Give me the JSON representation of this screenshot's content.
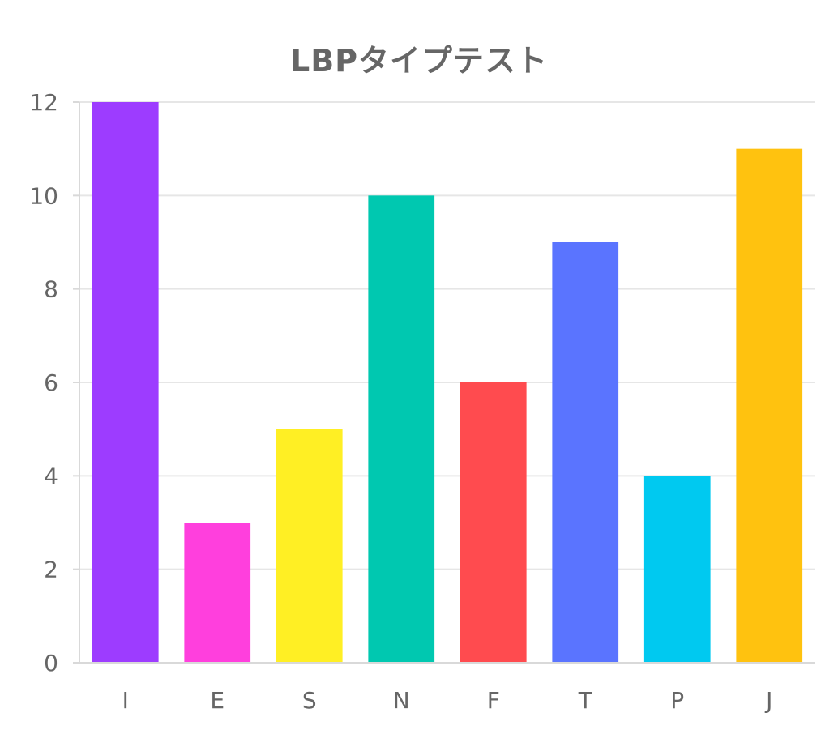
{
  "chart_data": {
    "type": "bar",
    "title": "LBPタイプテスト",
    "xlabel": "",
    "ylabel": "",
    "categories": [
      "I",
      "E",
      "S",
      "N",
      "F",
      "T",
      "P",
      "J"
    ],
    "values": [
      12,
      3,
      5,
      10,
      6,
      9,
      4,
      11
    ],
    "colors": [
      "#9D3CFF",
      "#FF3FDD",
      "#FFEF24",
      "#00C8B0",
      "#FF4B4F",
      "#5A74FF",
      "#00C9F0",
      "#FFC20F"
    ],
    "ylim": [
      0,
      12
    ],
    "yticks": [
      0,
      2,
      4,
      6,
      8,
      10,
      12
    ],
    "grid": true,
    "legend": "none"
  }
}
